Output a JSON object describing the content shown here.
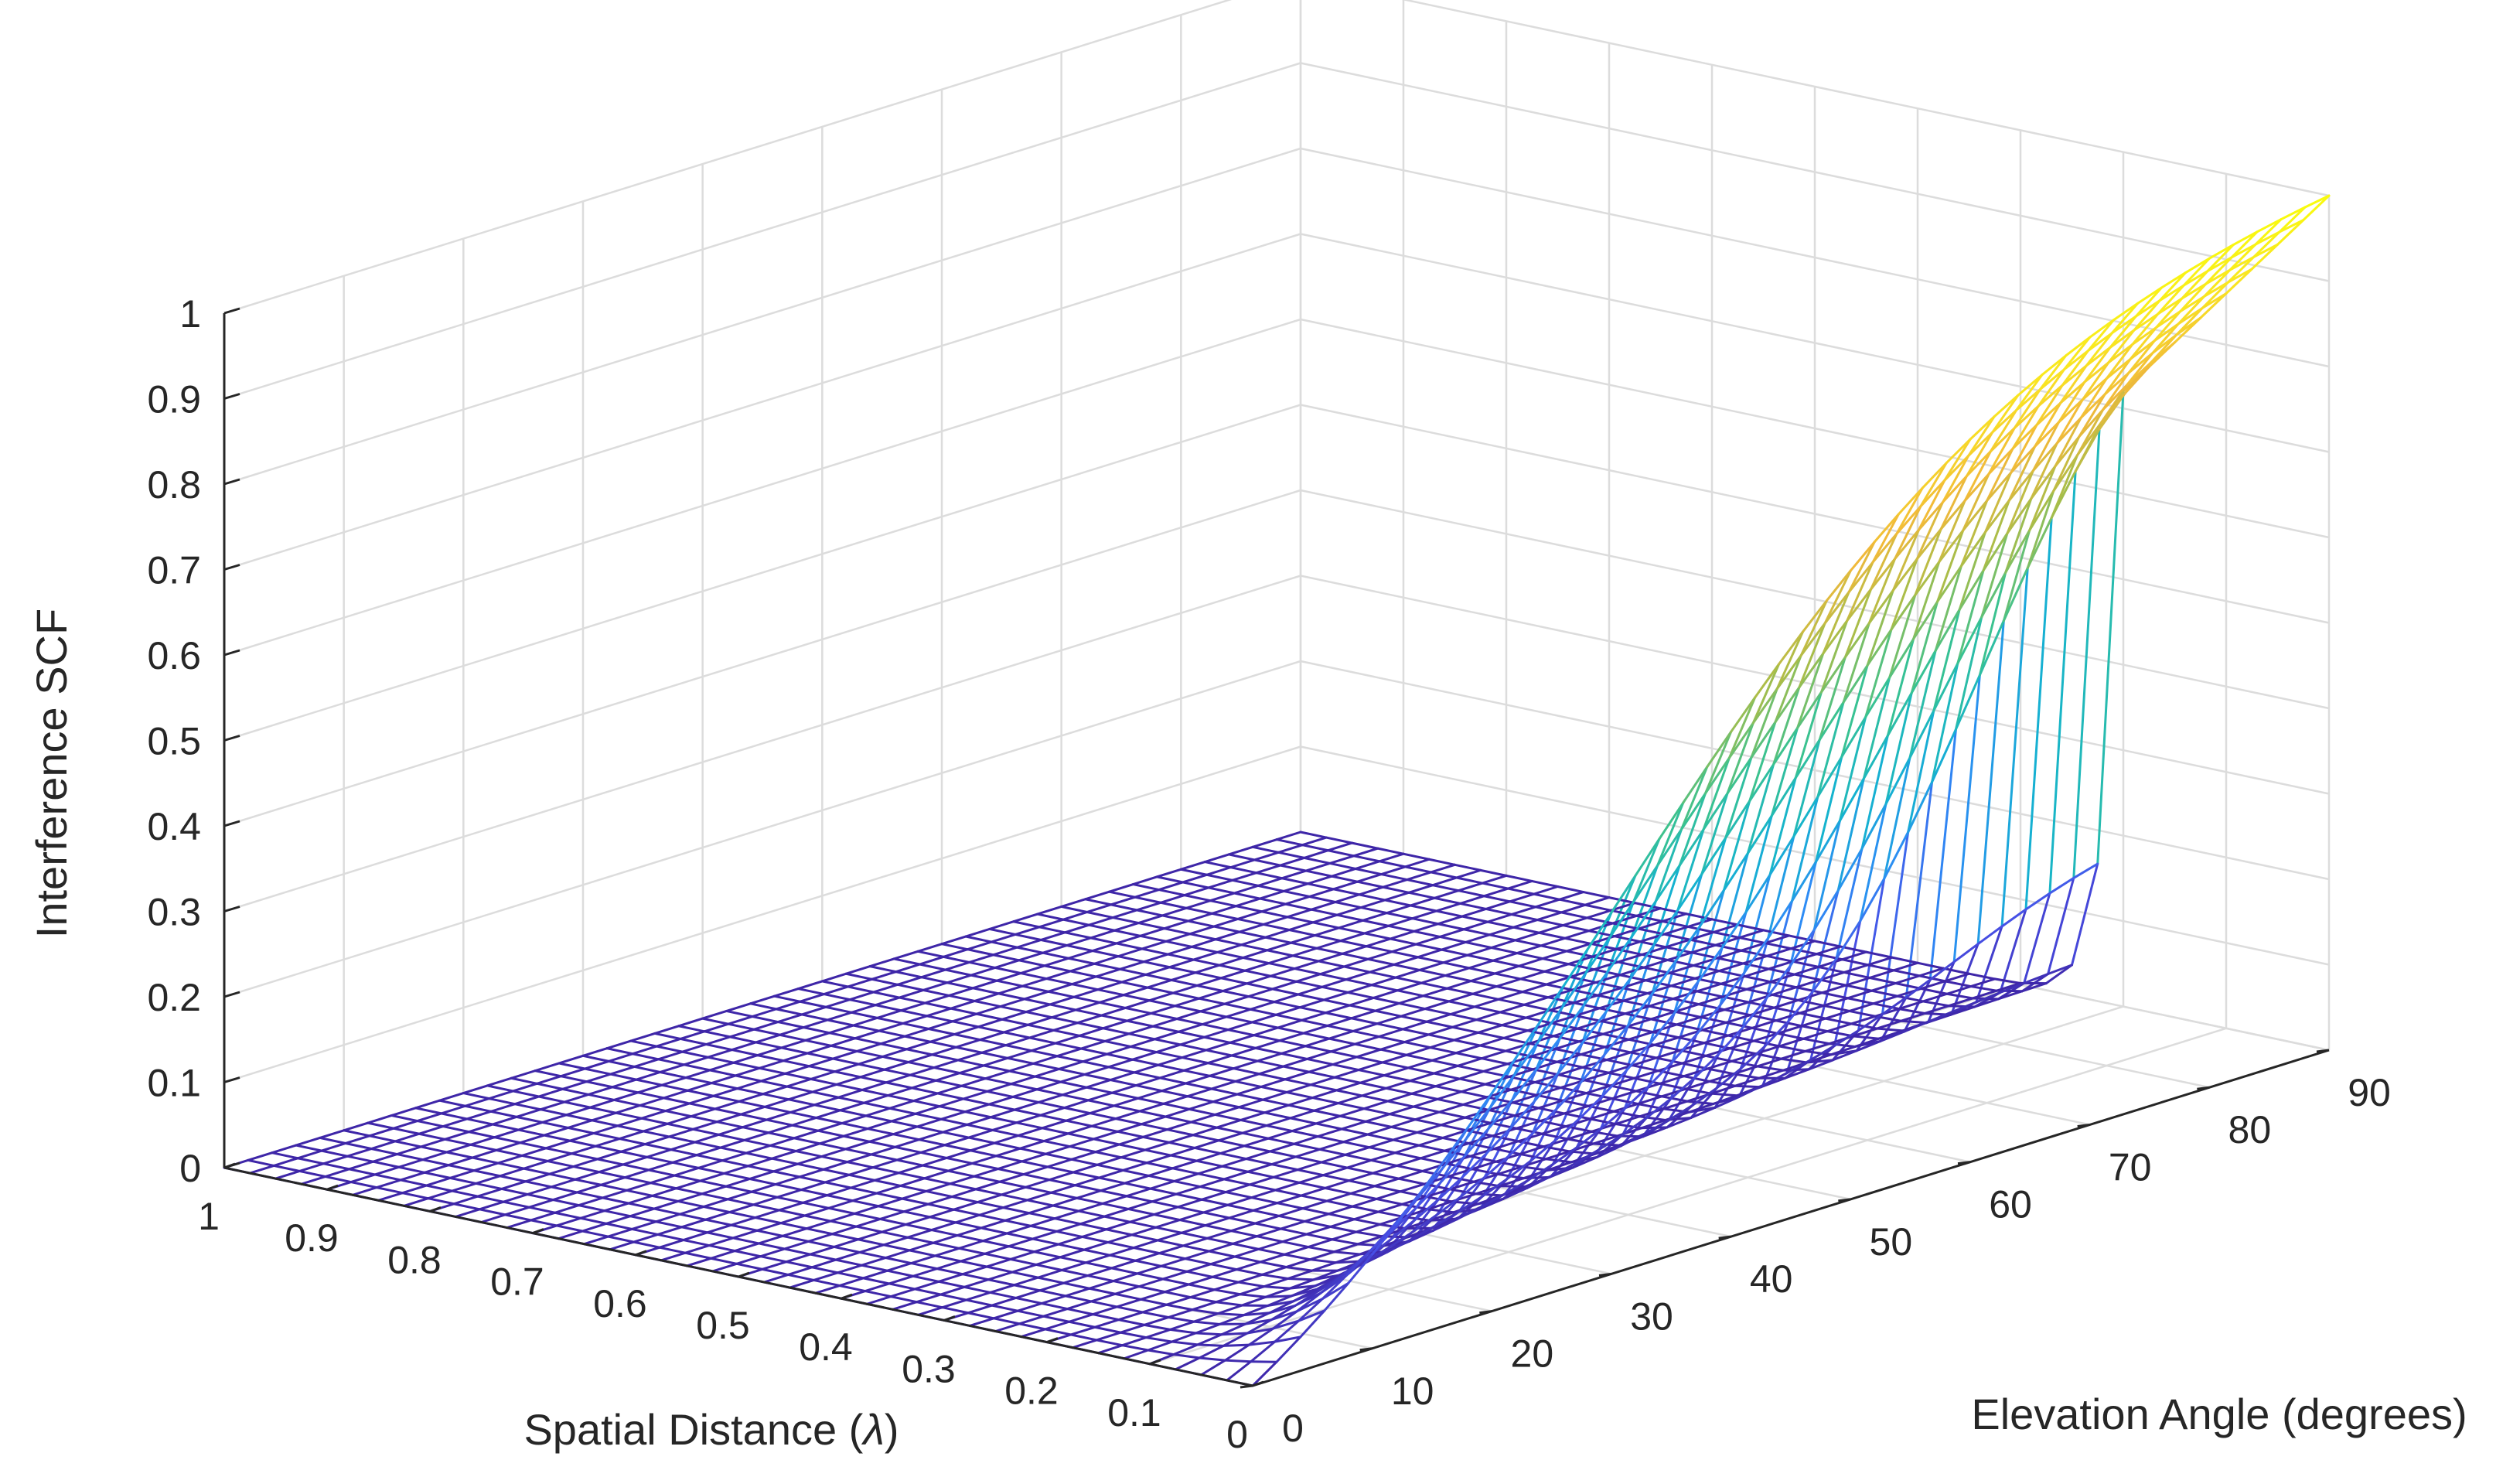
{
  "chart_data": {
    "type": "surface",
    "title": "",
    "xlabel": "Spatial Distance (λ)",
    "ylabel": "Elevation Angle (degrees)",
    "zlabel": "Interference SCF",
    "xlim": [
      0,
      1
    ],
    "ylim": [
      0,
      90
    ],
    "zlim": [
      0,
      1
    ],
    "x_ticks": [
      "1",
      "0.9",
      "0.8",
      "0.7",
      "0.6",
      "0.5",
      "0.4",
      "0.3",
      "0.2",
      "0.1",
      "0"
    ],
    "y_ticks": [
      "0",
      "10",
      "20",
      "30",
      "40",
      "50",
      "60",
      "70",
      "80",
      "90"
    ],
    "z_ticks": [
      "0",
      "0.1",
      "0.2",
      "0.3",
      "0.4",
      "0.5",
      "0.6",
      "0.7",
      "0.8",
      "0.9",
      "1"
    ],
    "grid": true,
    "colormap": "parula",
    "colormap_stops": [
      "#3e26a8",
      "#4750e6",
      "#2d8cf5",
      "#14b3cf",
      "#38c292",
      "#a6bd4a",
      "#f1b93a",
      "#f9e422",
      "#f9fb0e"
    ],
    "surface": {
      "x_mesh_count": 41,
      "y_mesh_count": 46,
      "samples": [
        {
          "x": 1.0,
          "y": 0,
          "z": 0.0
        },
        {
          "x": 1.0,
          "y": 90,
          "z": 0.0
        },
        {
          "x": 0.2,
          "y": 0,
          "z": 0.0
        },
        {
          "x": 0.2,
          "y": 45,
          "z": 0.02
        },
        {
          "x": 0.2,
          "y": 60,
          "z": 0.2
        },
        {
          "x": 0.2,
          "y": 90,
          "z": 0.72
        },
        {
          "x": 0.0,
          "y": 0,
          "z": 0.0
        },
        {
          "x": 0.0,
          "y": 30,
          "z": 0.3
        },
        {
          "x": 0.0,
          "y": 60,
          "z": 0.85
        },
        {
          "x": 0.0,
          "y": 90,
          "z": 1.0
        }
      ]
    }
  }
}
